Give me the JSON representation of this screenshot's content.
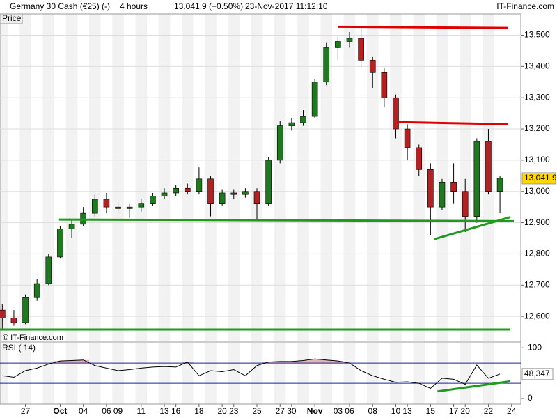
{
  "header": {
    "symbol": "Germany 30 Cash (€25) (-)",
    "interval": "4 hours",
    "quote": "13,041.9 (+0.50%)",
    "datetime": "23-Nov-2017 11:12:10",
    "brand": "IT-Finance.com"
  },
  "chart_data": [
    {
      "type": "candlestick",
      "panel_label": "Price",
      "watermark": "© IT-Finance.com",
      "x": [
        -2,
        -1,
        0,
        1,
        2,
        3,
        4,
        5,
        6,
        7,
        8,
        9,
        10,
        11,
        12,
        13,
        14,
        15,
        16,
        17,
        18,
        19,
        20,
        21,
        22,
        23,
        24,
        25,
        26,
        27,
        28,
        29,
        30,
        31,
        32,
        33,
        34,
        35,
        36,
        37,
        38,
        39,
        40,
        41
      ],
      "open": [
        12620,
        12595,
        12580,
        12660,
        12705,
        12790,
        12880,
        12895,
        12930,
        12975,
        12950,
        12945,
        12950,
        12960,
        12985,
        12995,
        13010,
        13000,
        13040,
        12960,
        12995,
        12990,
        13000,
        12960,
        13100,
        13210,
        13220,
        13240,
        13350,
        13460,
        13480,
        13490,
        13420,
        13380,
        13300,
        13200,
        13140,
        13070,
        12950,
        13030,
        13000,
        12920,
        13160,
        13000
      ],
      "high": [
        12640,
        12620,
        12670,
        12720,
        12800,
        12890,
        12910,
        12950,
        12990,
        12995,
        12965,
        12960,
        12975,
        12995,
        13010,
        13020,
        13025,
        13077,
        13050,
        13005,
        13005,
        13010,
        13010,
        13110,
        13225,
        13235,
        13260,
        13360,
        13475,
        13495,
        13510,
        13525,
        13430,
        13395,
        13310,
        13215,
        13150,
        13090,
        13040,
        13090,
        13040,
        13170,
        13200,
        13050
      ],
      "low": [
        12560,
        12570,
        12575,
        12650,
        12700,
        12785,
        12850,
        12890,
        12920,
        12930,
        12930,
        12915,
        12935,
        12955,
        12975,
        12985,
        12990,
        12990,
        12920,
        12955,
        12975,
        12980,
        12910,
        12955,
        13090,
        13195,
        13210,
        13235,
        13340,
        13420,
        13460,
        13400,
        13330,
        13270,
        13170,
        13100,
        13050,
        12860,
        12940,
        12960,
        12870,
        12900,
        12990,
        12930
      ],
      "close": [
        12595,
        12580,
        12660,
        12705,
        12790,
        12880,
        12895,
        12930,
        12975,
        12950,
        12945,
        12950,
        12960,
        12985,
        12995,
        13010,
        13000,
        13040,
        12960,
        12995,
        12990,
        13000,
        12960,
        13100,
        13210,
        13220,
        13240,
        13350,
        13460,
        13480,
        13490,
        13420,
        13380,
        13300,
        13200,
        13140,
        13070,
        12950,
        13030,
        13000,
        12920,
        13160,
        13000,
        13041.9
      ],
      "last_label": "13,041.9",
      "up_color": "#1f7a1f",
      "down_color": "#b22222",
      "xlim": [
        -2.2,
        42.8
      ],
      "xticks": [
        {
          "value": 0,
          "label": "27"
        },
        {
          "value": 3,
          "label": "Oct"
        },
        {
          "value": 5,
          "label": "04"
        },
        {
          "value": 7,
          "label": "06"
        },
        {
          "value": 8,
          "label": "09"
        },
        {
          "value": 10,
          "label": "11"
        },
        {
          "value": 12,
          "label": "13"
        },
        {
          "value": 13,
          "label": "16"
        },
        {
          "value": 15,
          "label": "18"
        },
        {
          "value": 17,
          "label": "20"
        },
        {
          "value": 18,
          "label": "23"
        },
        {
          "value": 20,
          "label": "25"
        },
        {
          "value": 22,
          "label": "27"
        },
        {
          "value": 23,
          "label": "30"
        },
        {
          "value": 25,
          "label": "Nov"
        },
        {
          "value": 27,
          "label": "03"
        },
        {
          "value": 28,
          "label": "06"
        },
        {
          "value": 30,
          "label": "08"
        },
        {
          "value": 32,
          "label": "10"
        },
        {
          "value": 33,
          "label": "13"
        },
        {
          "value": 35,
          "label": "15"
        },
        {
          "value": 37,
          "label": "17"
        },
        {
          "value": 38,
          "label": "20"
        },
        {
          "value": 40,
          "label": "22"
        },
        {
          "value": 42,
          "label": "24"
        }
      ],
      "ylim": [
        12520,
        13568
      ],
      "yticks": [
        {
          "value": 12600,
          "label": "12,600"
        },
        {
          "value": 12700,
          "label": "12,700"
        },
        {
          "value": 12800,
          "label": "12,800"
        },
        {
          "value": 12900,
          "label": "12,900"
        },
        {
          "value": 13000,
          "label": "13,000"
        },
        {
          "value": 13100,
          "label": "13,100"
        },
        {
          "value": 13200,
          "label": "13,200"
        },
        {
          "value": 13300,
          "label": "13,300"
        },
        {
          "value": 13400,
          "label": "13,400"
        },
        {
          "value": 13500,
          "label": "13,500"
        }
      ],
      "grid": true,
      "trendlines": [
        {
          "color": "#e00000",
          "points": [
            [
              27.0,
              13527
            ],
            [
              41.7,
              13523
            ]
          ]
        },
        {
          "color": "#e00000",
          "points": [
            [
              32.1,
              13222
            ],
            [
              41.7,
              13215
            ]
          ]
        },
        {
          "color": "#1f9a1f",
          "points": [
            [
              2.9,
              12910
            ],
            [
              42.2,
              12905
            ]
          ]
        },
        {
          "color": "#1f9a1f",
          "points": [
            [
              -2.2,
              12558
            ],
            [
              41.9,
              12558
            ]
          ]
        },
        {
          "color": "#1f9a1f",
          "points": [
            [
              35.3,
              12847
            ],
            [
              41.9,
              12918
            ]
          ]
        }
      ]
    },
    {
      "type": "line",
      "panel_label": "RSI ( 14)",
      "values": [
        45,
        42,
        55,
        60,
        68,
        74,
        75,
        76,
        65,
        60,
        55,
        57,
        60,
        62,
        63,
        62,
        72,
        45,
        55,
        53,
        57,
        45,
        65,
        72,
        73,
        73,
        75,
        78,
        76,
        74,
        70,
        55,
        45,
        38,
        32,
        33,
        30,
        20,
        40,
        38,
        28,
        66,
        40,
        48.347
      ],
      "last_label": "48,347",
      "color": "#000000",
      "overbought_fill": "#d9a0a0",
      "levels": [
        70,
        30
      ],
      "level_color": "#2020a0",
      "ylim": [
        -11,
        110
      ],
      "yticks": [
        0,
        100
      ],
      "trendlines": [
        {
          "color": "#1f9a1f",
          "points": [
            [
              35.6,
              14
            ],
            [
              41.9,
              34
            ]
          ]
        }
      ]
    }
  ]
}
